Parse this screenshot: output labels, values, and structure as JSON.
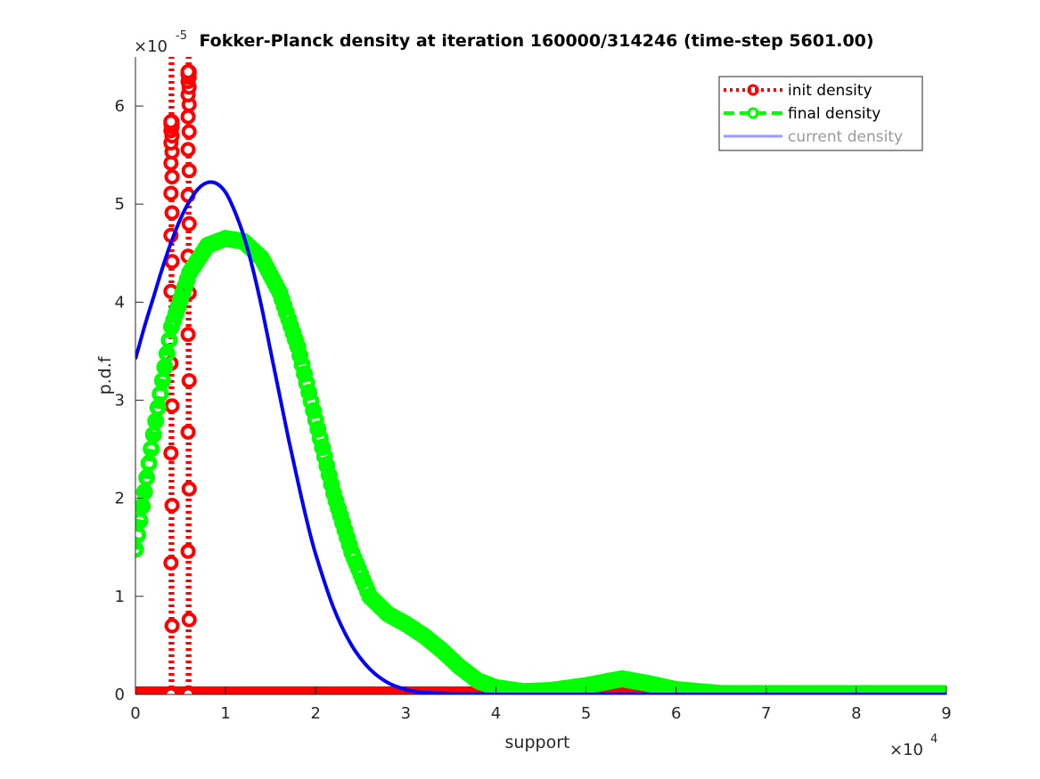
{
  "chart_data": {
    "type": "line",
    "title": "Fokker-Planck density at iteration 160000/314246 (time-step 5601.00)",
    "xlabel": "support",
    "ylabel": "p.d.f",
    "x_multiplier_label": "×10",
    "x_multiplier_exponent": "4",
    "y_multiplier_label": "×10",
    "y_multiplier_exponent": "-5",
    "xlim": [
      0,
      90000
    ],
    "ylim": [
      0,
      6.5e-05
    ],
    "xticks": [
      0,
      10000,
      20000,
      30000,
      40000,
      50000,
      60000,
      70000,
      80000,
      90000
    ],
    "xtick_labels": [
      "0",
      "1",
      "2",
      "3",
      "4",
      "5",
      "6",
      "7",
      "8",
      "9"
    ],
    "yticks": [
      0,
      1e-05,
      2e-05,
      3e-05,
      4e-05,
      5e-05,
      6e-05
    ],
    "ytick_labels": [
      "0",
      "1",
      "2",
      "3",
      "4",
      "5",
      "6"
    ],
    "grid": false,
    "legend_position": "top-right",
    "series": [
      {
        "name": "init density",
        "color": "#ff0000",
        "style": "dotted-circles",
        "description_points": [
          [
            0,
            0
          ],
          [
            3000,
            0
          ],
          [
            3900,
            0
          ],
          [
            4000,
            5.84e-05
          ],
          [
            4100,
            0
          ],
          [
            4300,
            0
          ],
          [
            5600,
            0
          ],
          [
            5800,
            6.35e-05
          ],
          [
            6000,
            6.35e-05
          ],
          [
            6200,
            0
          ],
          [
            6500,
            0
          ],
          [
            50000,
            0
          ],
          [
            54000,
            5e-07
          ],
          [
            58000,
            0
          ],
          [
            90000,
            0
          ]
        ]
      },
      {
        "name": "final density",
        "color": "#00ff00",
        "style": "dashed-circles",
        "points": [
          [
            0,
            1.48e-05
          ],
          [
            2000,
            2.65e-05
          ],
          [
            4000,
            3.75e-05
          ],
          [
            6000,
            4.3e-05
          ],
          [
            8000,
            4.58e-05
          ],
          [
            10000,
            4.65e-05
          ],
          [
            12000,
            4.62e-05
          ],
          [
            14000,
            4.45e-05
          ],
          [
            16000,
            4.1e-05
          ],
          [
            18000,
            3.55e-05
          ],
          [
            20000,
            2.8e-05
          ],
          [
            22000,
            2.05e-05
          ],
          [
            24000,
            1.45e-05
          ],
          [
            26000,
            1e-05
          ],
          [
            28000,
            8.2e-06
          ],
          [
            30000,
            7.2e-06
          ],
          [
            32000,
            6e-06
          ],
          [
            34000,
            4.5e-06
          ],
          [
            36000,
            2.8e-06
          ],
          [
            38000,
            1.4e-06
          ],
          [
            40000,
            7e-07
          ],
          [
            43000,
            3e-07
          ],
          [
            46000,
            4e-07
          ],
          [
            50000,
            9e-07
          ],
          [
            54000,
            1.6e-06
          ],
          [
            57000,
            1.1e-06
          ],
          [
            60000,
            5e-07
          ],
          [
            65000,
            1e-07
          ],
          [
            70000,
            1e-07
          ],
          [
            80000,
            1e-07
          ],
          [
            90000,
            1e-07
          ]
        ]
      },
      {
        "name": "current density",
        "color": "#0000ff",
        "style": "solid",
        "points": [
          [
            0,
            3.42e-05
          ],
          [
            1000,
            3.75e-05
          ],
          [
            2000,
            4.05e-05
          ],
          [
            3000,
            4.35e-05
          ],
          [
            4000,
            4.62e-05
          ],
          [
            5000,
            4.85e-05
          ],
          [
            6000,
            5.03e-05
          ],
          [
            7000,
            5.16e-05
          ],
          [
            8000,
            5.22e-05
          ],
          [
            9000,
            5.21e-05
          ],
          [
            10000,
            5.12e-05
          ],
          [
            11000,
            4.93e-05
          ],
          [
            12000,
            4.68e-05
          ],
          [
            13000,
            4.35e-05
          ],
          [
            14000,
            3.95e-05
          ],
          [
            15000,
            3.5e-05
          ],
          [
            16000,
            3.05e-05
          ],
          [
            17000,
            2.6e-05
          ],
          [
            18000,
            2.18e-05
          ],
          [
            19000,
            1.78e-05
          ],
          [
            20000,
            1.43e-05
          ],
          [
            22000,
            8.8e-06
          ],
          [
            24000,
            5e-06
          ],
          [
            26000,
            2.6e-06
          ],
          [
            28000,
            1.2e-06
          ],
          [
            30000,
            5e-07
          ],
          [
            32000,
            2e-07
          ],
          [
            35000,
            1e-07
          ],
          [
            40000,
            0
          ],
          [
            50000,
            0
          ],
          [
            60000,
            0
          ],
          [
            70000,
            0
          ],
          [
            80000,
            0
          ],
          [
            90000,
            0
          ]
        ]
      }
    ]
  }
}
